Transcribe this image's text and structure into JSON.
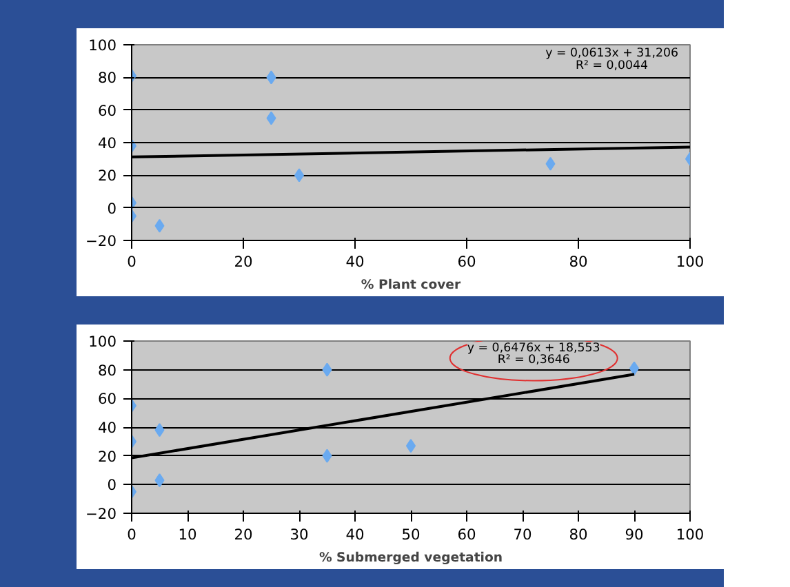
{
  "chart_data": [
    {
      "type": "scatter",
      "xlabel": "% Plant cover",
      "xlim": [
        0,
        100
      ],
      "xticks": [
        0,
        20,
        40,
        60,
        80,
        100
      ],
      "ylim": [
        -20,
        100
      ],
      "yticks": [
        -20,
        0,
        20,
        40,
        60,
        80,
        100
      ],
      "grid": "y",
      "annotations": [
        "y = 0,0613x + 31,206",
        "R² = 0,0044"
      ],
      "series": [
        {
          "marker": "diamond",
          "color": "#6aaaf0",
          "x": [
            0,
            0,
            0,
            0,
            5,
            25,
            25,
            30,
            75,
            100
          ],
          "values": [
            81,
            38,
            3,
            -5,
            -11,
            80,
            55,
            20,
            27,
            30
          ]
        },
        {
          "type": "line",
          "color": "#000000",
          "x": [
            0,
            100
          ],
          "values": [
            31.2,
            37.3
          ]
        }
      ]
    },
    {
      "type": "scatter",
      "xlabel": "% Submerged vegetation",
      "xlim": [
        0,
        100
      ],
      "xticks": [
        0,
        10,
        20,
        30,
        40,
        50,
        60,
        70,
        80,
        90,
        100
      ],
      "ylim": [
        -20,
        100
      ],
      "yticks": [
        -20,
        0,
        20,
        40,
        60,
        80,
        100
      ],
      "grid": "y",
      "annotations": [
        "y = 0,6476x + 18,553",
        "R² = 0,3646"
      ],
      "series": [
        {
          "marker": "diamond",
          "color": "#6aaaf0",
          "x": [
            0,
            0,
            0,
            5,
            5,
            35,
            35,
            50,
            90
          ],
          "values": [
            55,
            30,
            -5,
            38,
            3,
            80,
            20,
            27,
            81
          ]
        },
        {
          "type": "line",
          "color": "#000000",
          "x": [
            0,
            90
          ],
          "values": [
            18.6,
            76.8
          ]
        }
      ]
    }
  ]
}
